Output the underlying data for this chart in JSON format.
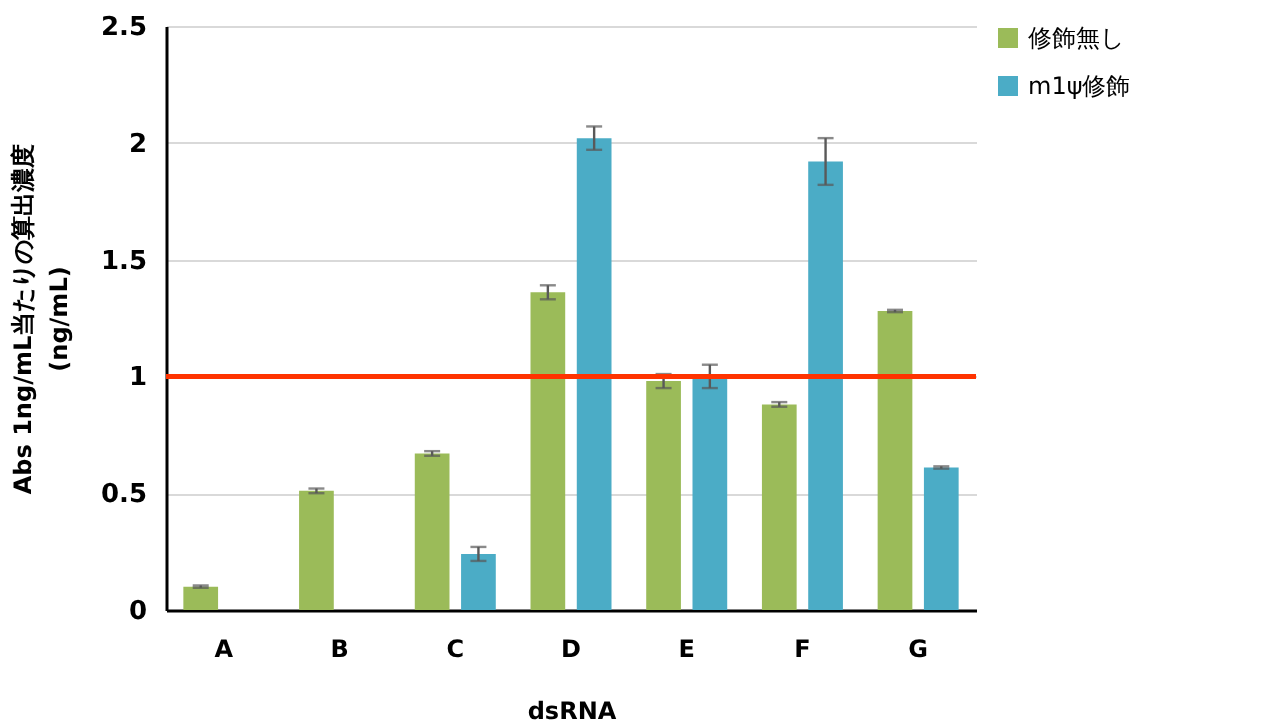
{
  "chart_data": {
    "type": "bar",
    "xlabel": "dsRNA",
    "ylabel": "Abs 1ng/mL当たりの算出濃度\n(ng/mL)",
    "categories": [
      "A",
      "B",
      "C",
      "D",
      "E",
      "F",
      "G"
    ],
    "series": [
      {
        "name": "修飾無し",
        "color": "#9bbb59",
        "values": [
          0.1,
          0.51,
          0.67,
          1.36,
          0.98,
          0.88,
          1.28
        ],
        "errors": [
          0.005,
          0.01,
          0.01,
          0.03,
          0.03,
          0.01,
          0.005
        ]
      },
      {
        "name": "m1ψ修飾",
        "color": "#4bacc6",
        "values": [
          null,
          null,
          0.24,
          2.02,
          1.0,
          1.92,
          0.61
        ],
        "errors": [
          null,
          null,
          0.03,
          0.05,
          0.05,
          0.1,
          0.005
        ]
      }
    ],
    "ylim": [
      0,
      2.5
    ],
    "yticks": [
      0,
      0.5,
      1,
      1.5,
      2,
      2.5
    ],
    "grid": "y",
    "legend": "right",
    "ref_lines": [
      {
        "axis": "y",
        "value": 1,
        "color": "#ff3300"
      }
    ]
  }
}
